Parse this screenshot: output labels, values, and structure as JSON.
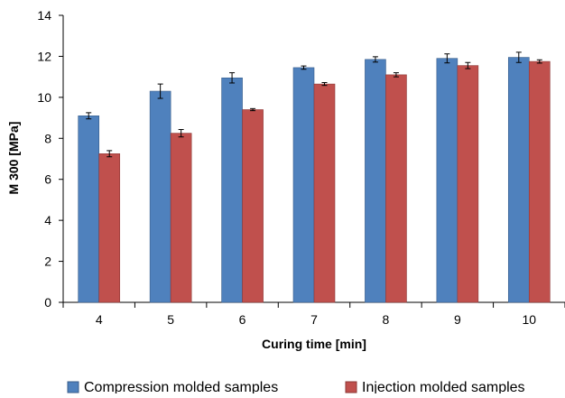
{
  "chart_data": {
    "type": "bar",
    "title": "",
    "xlabel": "Curing time [min]",
    "ylabel": "M 300 [MPa]",
    "categories": [
      "4",
      "5",
      "6",
      "7",
      "8",
      "9",
      "10"
    ],
    "ylim": [
      0,
      14
    ],
    "yticks": [
      0,
      2,
      4,
      6,
      8,
      10,
      12,
      14
    ],
    "grid": false,
    "legend_position": "bottom",
    "error_bars": true,
    "series": [
      {
        "name": "Compression molded samples",
        "color": "#4f81bd",
        "values": [
          9.1,
          10.3,
          10.95,
          11.45,
          11.85,
          11.9,
          11.95
        ],
        "errors": [
          0.15,
          0.35,
          0.25,
          0.08,
          0.13,
          0.22,
          0.25
        ]
      },
      {
        "name": "Injection molded samples",
        "color": "#c0504d",
        "values": [
          7.25,
          8.25,
          9.4,
          10.65,
          11.1,
          11.55,
          11.75
        ],
        "errors": [
          0.15,
          0.18,
          0.05,
          0.07,
          0.1,
          0.15,
          0.08
        ]
      }
    ]
  }
}
